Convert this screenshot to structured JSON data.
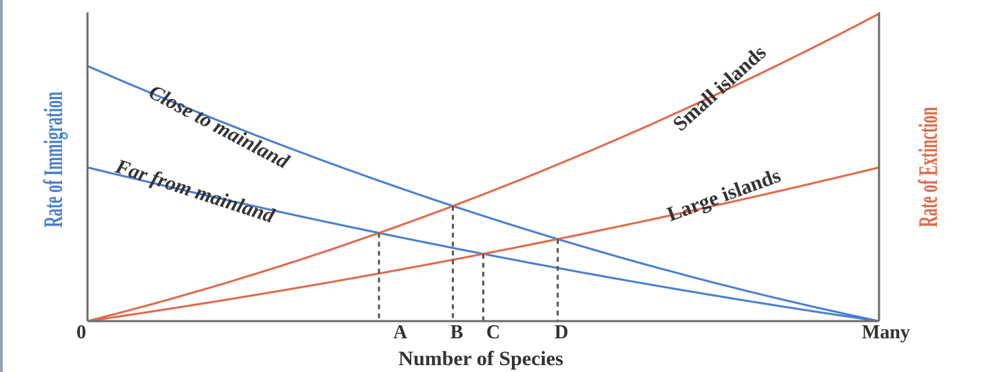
{
  "chart_data": {
    "type": "line",
    "title": "",
    "xlabel": "Number of Species",
    "ylabel_left": "Rate of Immigration",
    "ylabel_right": "Rate of Extinction",
    "x_ticks": [
      "0",
      "A",
      "B",
      "C",
      "D",
      "Many"
    ],
    "equilibrium_points": [
      "A",
      "B",
      "C",
      "D"
    ],
    "series": [
      {
        "name": "Close to mainland",
        "kind": "immigration",
        "color": "#4a7fcf",
        "x": [
          0,
          1
        ],
        "y": [
          0.83,
          0
        ],
        "curvature": 0.35
      },
      {
        "name": "Far from mainland",
        "kind": "immigration",
        "color": "#4a7fcf",
        "x": [
          0,
          1
        ],
        "y": [
          0.5,
          0
        ],
        "curvature": 0.25
      },
      {
        "name": "Small islands",
        "kind": "extinction",
        "color": "#e06a4a",
        "x": [
          0,
          1
        ],
        "y": [
          0,
          1.0
        ],
        "curvature": 0.35
      },
      {
        "name": "Large islands",
        "kind": "extinction",
        "color": "#e06a4a",
        "x": [
          0,
          1
        ],
        "y": [
          0,
          0.5
        ],
        "curvature": 0.25
      }
    ],
    "colors": {
      "immigration": "#4a7fcf",
      "extinction": "#e06a4a",
      "axis": "#6b6b6b",
      "text": "#333333"
    }
  }
}
